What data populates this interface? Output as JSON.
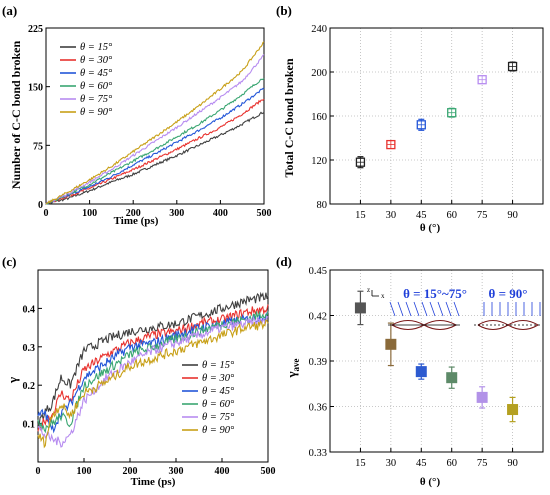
{
  "chart_data": [
    {
      "panel": "(a)",
      "type": "line",
      "xlabel": "Time (ps)",
      "ylabel": "Number of C-C bond broken",
      "xlim": [
        0,
        500
      ],
      "ylim": [
        0,
        225
      ],
      "xticks": [
        0,
        100,
        200,
        300,
        400,
        500
      ],
      "yticks": [
        0,
        75,
        150,
        225
      ],
      "legend_position": "top-left",
      "series": [
        {
          "name": "θ = 15°",
          "color": "#404040",
          "x": [
            0,
            50,
            100,
            150,
            200,
            250,
            300,
            350,
            400,
            450,
            500
          ],
          "values": [
            0,
            7,
            17,
            28,
            38,
            50,
            62,
            75,
            88,
            102,
            118
          ]
        },
        {
          "name": "θ = 30°",
          "color": "#e8322e",
          "x": [
            0,
            50,
            100,
            150,
            200,
            250,
            300,
            350,
            400,
            450,
            500
          ],
          "values": [
            0,
            10,
            20,
            32,
            44,
            57,
            70,
            84,
            98,
            115,
            135
          ]
        },
        {
          "name": "θ = 45°",
          "color": "#2356d8",
          "x": [
            0,
            50,
            100,
            150,
            200,
            250,
            300,
            350,
            400,
            450,
            500
          ],
          "values": [
            0,
            11,
            22,
            35,
            50,
            64,
            79,
            94,
            110,
            128,
            148
          ]
        },
        {
          "name": "θ = 60°",
          "color": "#3aa672",
          "x": [
            0,
            50,
            100,
            150,
            200,
            250,
            300,
            350,
            400,
            450,
            500
          ],
          "values": [
            0,
            12,
            25,
            40,
            55,
            70,
            86,
            102,
            120,
            140,
            162
          ]
        },
        {
          "name": "θ = 75°",
          "color": "#b78cf0",
          "x": [
            0,
            50,
            100,
            150,
            200,
            250,
            300,
            350,
            400,
            450,
            500
          ],
          "values": [
            0,
            13,
            28,
            44,
            62,
            80,
            98,
            117,
            136,
            157,
            190
          ]
        },
        {
          "name": "θ = 90°",
          "color": "#c8a018",
          "x": [
            0,
            50,
            100,
            150,
            200,
            250,
            300,
            350,
            400,
            450,
            500
          ],
          "values": [
            0,
            15,
            31,
            48,
            67,
            86,
            105,
            125,
            147,
            170,
            207
          ]
        }
      ]
    },
    {
      "panel": "(b)",
      "type": "scatter",
      "xlabel": "θ (°)",
      "ylabel": "Total  C-C bond broken",
      "ylim": [
        80,
        240
      ],
      "yticks": [
        80,
        120,
        160,
        200,
        240
      ],
      "categories": [
        "15",
        "30",
        "45",
        "60",
        "75",
        "90"
      ],
      "values": [
        118,
        134,
        152,
        163,
        193,
        205
      ],
      "errors": [
        5,
        2,
        5,
        4,
        3,
        4
      ],
      "colors": [
        "#202020",
        "#e8322e",
        "#2356d8",
        "#3aa672",
        "#b78cf0",
        "#202020"
      ],
      "grid": true
    },
    {
      "panel": "(c)",
      "type": "line",
      "xlabel": "Time (ps)",
      "ylabel": "γ",
      "xlim": [
        0,
        500
      ],
      "ylim": [
        0,
        0.5
      ],
      "xticks": [
        0,
        100,
        200,
        300,
        400,
        500
      ],
      "yticks": [
        0.1,
        0.2,
        0.3,
        0.4
      ],
      "legend_position": "bottom-right",
      "series": [
        {
          "name": "θ = 15°",
          "color": "#404040",
          "x": [
            0,
            15,
            30,
            50,
            70,
            100,
            150,
            200,
            250,
            300,
            350,
            400,
            450,
            500
          ],
          "values": [
            0.1,
            0.13,
            0.15,
            0.22,
            0.2,
            0.29,
            0.32,
            0.34,
            0.35,
            0.36,
            0.38,
            0.4,
            0.42,
            0.43
          ]
        },
        {
          "name": "θ = 30°",
          "color": "#e8322e",
          "x": [
            0,
            15,
            30,
            50,
            70,
            100,
            150,
            200,
            250,
            300,
            350,
            400,
            450,
            500
          ],
          "values": [
            0.08,
            0.11,
            0.12,
            0.18,
            0.16,
            0.24,
            0.28,
            0.31,
            0.33,
            0.34,
            0.36,
            0.37,
            0.39,
            0.4
          ]
        },
        {
          "name": "θ = 45°",
          "color": "#2356d8",
          "x": [
            0,
            15,
            30,
            50,
            70,
            100,
            150,
            200,
            250,
            300,
            350,
            400,
            450,
            500
          ],
          "values": [
            0.12,
            0.13,
            0.08,
            0.13,
            0.15,
            0.22,
            0.26,
            0.3,
            0.31,
            0.33,
            0.35,
            0.36,
            0.37,
            0.38
          ]
        },
        {
          "name": "θ = 60°",
          "color": "#3aa672",
          "x": [
            0,
            15,
            30,
            50,
            70,
            100,
            150,
            200,
            250,
            300,
            350,
            400,
            450,
            500
          ],
          "values": [
            0.11,
            0.09,
            0.1,
            0.12,
            0.1,
            0.2,
            0.24,
            0.28,
            0.3,
            0.32,
            0.34,
            0.36,
            0.37,
            0.39
          ]
        },
        {
          "name": "θ = 75°",
          "color": "#b78cf0",
          "x": [
            0,
            15,
            30,
            50,
            70,
            100,
            150,
            200,
            250,
            300,
            350,
            400,
            450,
            500
          ],
          "values": [
            0.09,
            0.07,
            0.06,
            0.05,
            0.07,
            0.16,
            0.22,
            0.26,
            0.29,
            0.31,
            0.33,
            0.35,
            0.36,
            0.37
          ]
        },
        {
          "name": "θ = 90°",
          "color": "#c8a018",
          "x": [
            0,
            15,
            30,
            50,
            70,
            100,
            150,
            200,
            250,
            300,
            350,
            400,
            450,
            500
          ],
          "values": [
            0.07,
            0.05,
            0.12,
            0.15,
            0.12,
            0.18,
            0.21,
            0.25,
            0.27,
            0.29,
            0.31,
            0.33,
            0.35,
            0.36
          ]
        }
      ]
    },
    {
      "panel": "(d)",
      "type": "scatter",
      "xlabel": "θ (°)",
      "ylabel": "γave",
      "ylabel_main": "γ",
      "ylabel_sub": "ave",
      "ylim": [
        0.33,
        0.45
      ],
      "yticks": [
        0.33,
        0.36,
        0.39,
        0.42,
        0.45
      ],
      "categories": [
        "15",
        "30",
        "45",
        "60",
        "75",
        "90"
      ],
      "values": [
        0.425,
        0.401,
        0.383,
        0.379,
        0.366,
        0.358
      ],
      "errors": [
        0.011,
        0.014,
        0.005,
        0.007,
        0.007,
        0.008
      ],
      "colors": [
        "#555555",
        "#8a6a3a",
        "#2c5ad0",
        "#5d8a68",
        "#b292e8",
        "#b4a021"
      ],
      "grid": true,
      "annotations": [
        "θ = 15°~75°",
        "θ = 90°"
      ],
      "axis_labels_inset": [
        "z",
        "x"
      ]
    }
  ]
}
